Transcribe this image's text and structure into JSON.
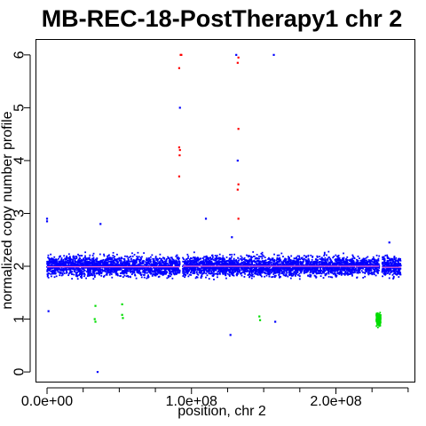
{
  "chart_data": {
    "type": "scatter",
    "title": "MB-REC-18-PostTherapy1 chr 2",
    "xlabel": "position, chr 2",
    "ylabel": "normalized copy number profile",
    "xlim": [
      -8000000,
      255000000
    ],
    "ylim": [
      -0.2,
      6.3
    ],
    "x_ticks": [
      0,
      100000000,
      200000000
    ],
    "x_tick_labels": [
      "0.0e+00",
      "1.0e+08",
      "2.0e+08"
    ],
    "y_ticks": [
      0,
      1,
      2,
      3,
      4,
      5,
      6
    ],
    "y_tick_labels": [
      "0",
      "1",
      "2",
      "3",
      "4",
      "5",
      "6"
    ],
    "grid": false,
    "series": [
      {
        "role": "normal",
        "color": "#0000ff",
        "band": {
          "center": 2.0,
          "spread": 0.13,
          "segments": [
            [
              0,
              92000000
            ],
            [
              94000000,
              230000000
            ],
            [
              232000000,
              245000000
            ]
          ]
        },
        "points": [
          [
            0,
            2.9
          ],
          [
            0,
            2.85
          ],
          [
            1000000,
            1.15
          ],
          [
            37000000,
            2.8
          ],
          [
            35000000,
            0.0
          ],
          [
            92000000,
            5.0
          ],
          [
            110000000,
            2.9
          ],
          [
            128000000,
            2.55
          ],
          [
            127000000,
            0.7
          ],
          [
            132000000,
            4.0
          ],
          [
            158000000,
            0.95
          ],
          [
            157000000,
            6.0
          ],
          [
            131000000,
            6.0
          ],
          [
            237000000,
            2.45
          ]
        ]
      },
      {
        "role": "gain",
        "color": "#ff0000",
        "points": [
          [
            92500000,
            6.0
          ],
          [
            93000000,
            6.0
          ],
          [
            91500000,
            5.75
          ],
          [
            91500000,
            4.25
          ],
          [
            92000000,
            4.2
          ],
          [
            91800000,
            4.1
          ],
          [
            91500000,
            3.7
          ],
          [
            132500000,
            5.95
          ],
          [
            132000000,
            5.85
          ],
          [
            132500000,
            4.6
          ],
          [
            132500000,
            3.55
          ],
          [
            132000000,
            3.45
          ],
          [
            132500000,
            2.9
          ]
        ]
      },
      {
        "role": "loss",
        "color": "#00dd00",
        "points": [
          [
            33500000,
            1.25
          ],
          [
            33000000,
            1.0
          ],
          [
            33500000,
            0.95
          ],
          [
            52000000,
            1.28
          ],
          [
            52000000,
            1.08
          ],
          [
            52500000,
            1.02
          ],
          [
            147000000,
            1.05
          ],
          [
            147500000,
            0.98
          ]
        ],
        "cluster": {
          "x": [
            228000000,
            231000000
          ],
          "center": 1.0,
          "spread": 0.16
        }
      }
    ],
    "segment_line": {
      "color": "#ff66cc",
      "segments": [
        [
          0,
          92000000,
          1.99
        ],
        [
          94000000,
          230000000,
          2.0
        ],
        [
          232000000,
          245000000,
          1.98
        ]
      ]
    }
  }
}
